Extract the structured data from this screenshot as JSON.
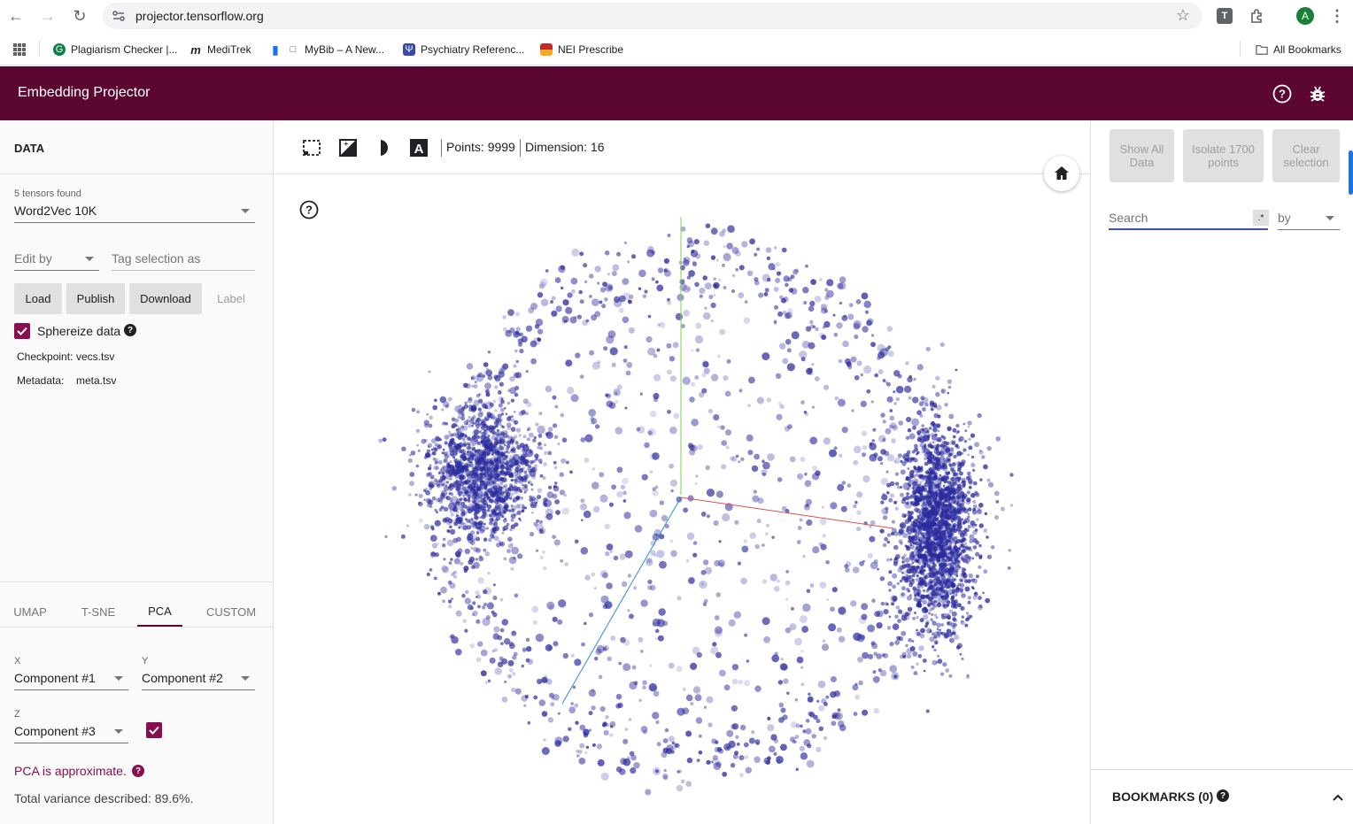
{
  "browser": {
    "url": "projector.tensorflow.org",
    "profile_initial": "A",
    "ext_initial": "T",
    "bookmarks": [
      {
        "label": "Plagiarism Checker |..."
      },
      {
        "label": "MediTrek"
      },
      {
        "label": "MyBib – A New..."
      },
      {
        "label": "Psychiatry Referenc..."
      },
      {
        "label": "NEI Prescribe"
      }
    ],
    "all_bookmarks": "All Bookmarks"
  },
  "header": {
    "title": "Embedding Projector"
  },
  "data_panel": {
    "title": "DATA",
    "tensors_found": "5 tensors found",
    "tensor": "Word2Vec 10K",
    "edit_by": "Edit by",
    "tag_selection": "Tag selection as",
    "buttons": {
      "load": "Load",
      "publish": "Publish",
      "download": "Download",
      "label": "Label"
    },
    "sphereize_label": "Sphereize data",
    "sphereize_checked": true,
    "checkpoint_label": "Checkpoint:",
    "checkpoint_value": "vecs.tsv",
    "metadata_label": "Metadata:",
    "metadata_value": "meta.tsv"
  },
  "projection_tabs": [
    {
      "label": "UMAP",
      "active": false
    },
    {
      "label": "T-SNE",
      "active": false
    },
    {
      "label": "PCA",
      "active": true
    },
    {
      "label": "CUSTOM",
      "active": false
    }
  ],
  "pca": {
    "x_label": "X",
    "x_value": "Component #1",
    "y_label": "Y",
    "y_value": "Component #2",
    "z_label": "Z",
    "z_value": "Component #3",
    "z_enabled": true,
    "approx_note": "PCA is approximate.",
    "variance": "Total variance described: 89.6%."
  },
  "toolbar": {
    "points": "Points: 9999",
    "dimension": "Dimension: 16"
  },
  "right_panel": {
    "show_all": "Show All Data",
    "isolate": "Isolate 1700 points",
    "clear": "Clear selection",
    "search_placeholder": "Search",
    "regex": ".*",
    "by": "by",
    "bookmarks_title": "BOOKMARKS (0)"
  },
  "colors": {
    "header": "#5c0632",
    "accent": "#880e4f",
    "points": "#2a2a9e"
  }
}
